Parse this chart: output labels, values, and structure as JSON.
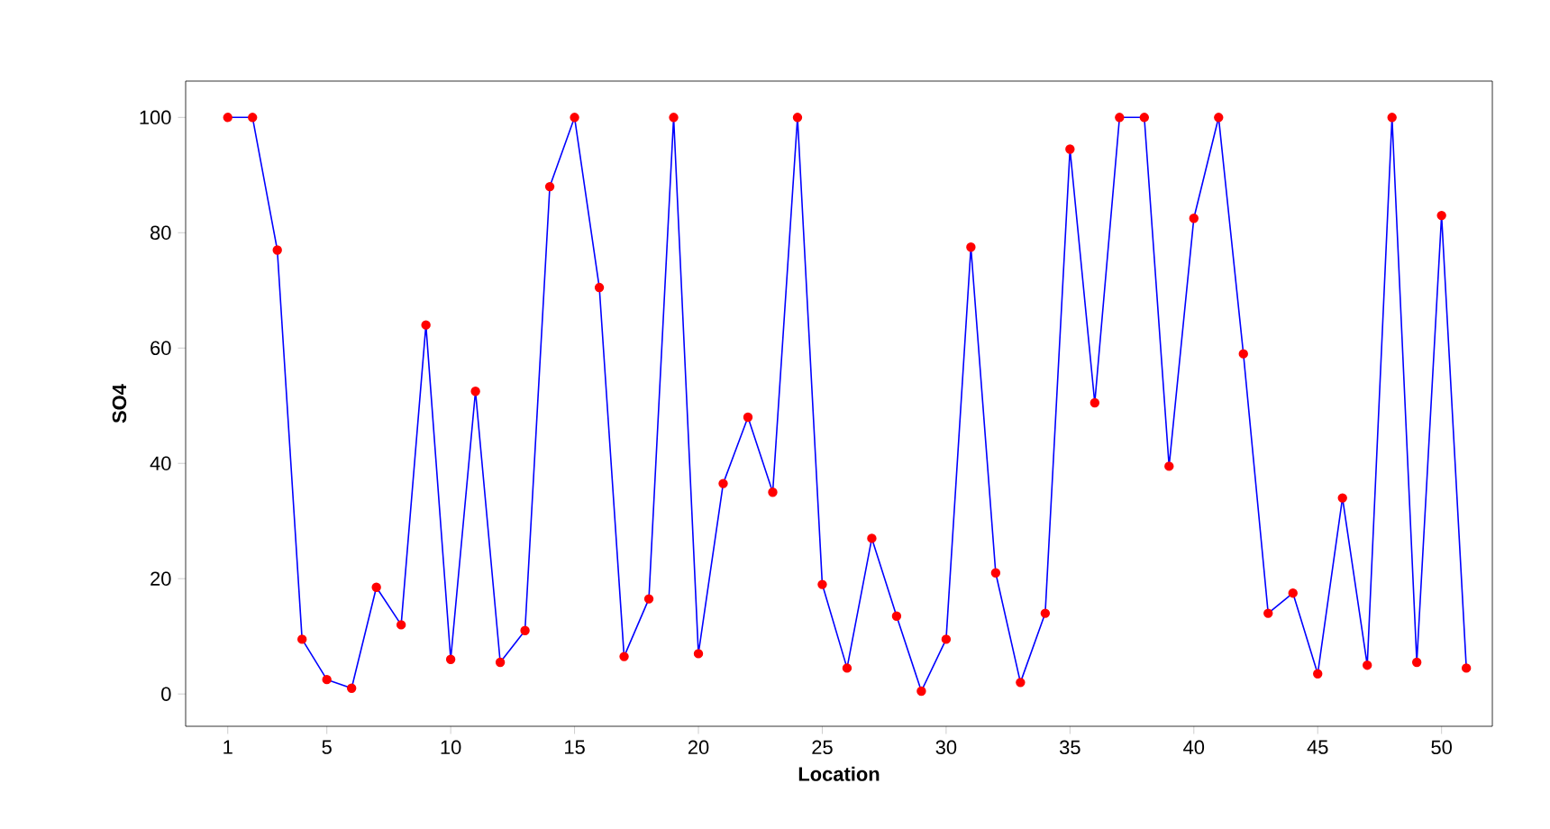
{
  "chart_data": {
    "type": "line",
    "xlabel": "Location",
    "ylabel": "SO4",
    "x": [
      1,
      2,
      3,
      4,
      5,
      6,
      7,
      8,
      9,
      10,
      11,
      12,
      13,
      14,
      15,
      16,
      17,
      18,
      19,
      20,
      21,
      22,
      23,
      24,
      25,
      26,
      27,
      28,
      29,
      30,
      31,
      32,
      33,
      34,
      35,
      36,
      37,
      38,
      39,
      40,
      41,
      42,
      43,
      44,
      45,
      46,
      47,
      48,
      49,
      50,
      51
    ],
    "series": [
      {
        "color": "#0000ff",
        "values": [
          100,
          100,
          77,
          9.5,
          2.5,
          1,
          18.5,
          12,
          64,
          6,
          52.5,
          5.5,
          11,
          88,
          100,
          70.5,
          6.5,
          16.5,
          100,
          7,
          36.5,
          48,
          35,
          100,
          19,
          4.5,
          27,
          13.5,
          0.5,
          9.5,
          77.5,
          21,
          2,
          14,
          94.5,
          50.5,
          100,
          100,
          39.5,
          82.5,
          100,
          59,
          14,
          17.5,
          3.5,
          34,
          5,
          100,
          5.5,
          83,
          4.5
        ]
      }
    ],
    "marker": "circle",
    "xlim": [
      -0.7,
      52.05
    ],
    "ylim": [
      -5.6,
      106.3
    ],
    "xticks": [
      1,
      5,
      10,
      15,
      20,
      25,
      30,
      35,
      40,
      45,
      50
    ],
    "yticks": [
      0,
      20,
      40,
      60,
      80,
      100
    ],
    "grid": false
  }
}
